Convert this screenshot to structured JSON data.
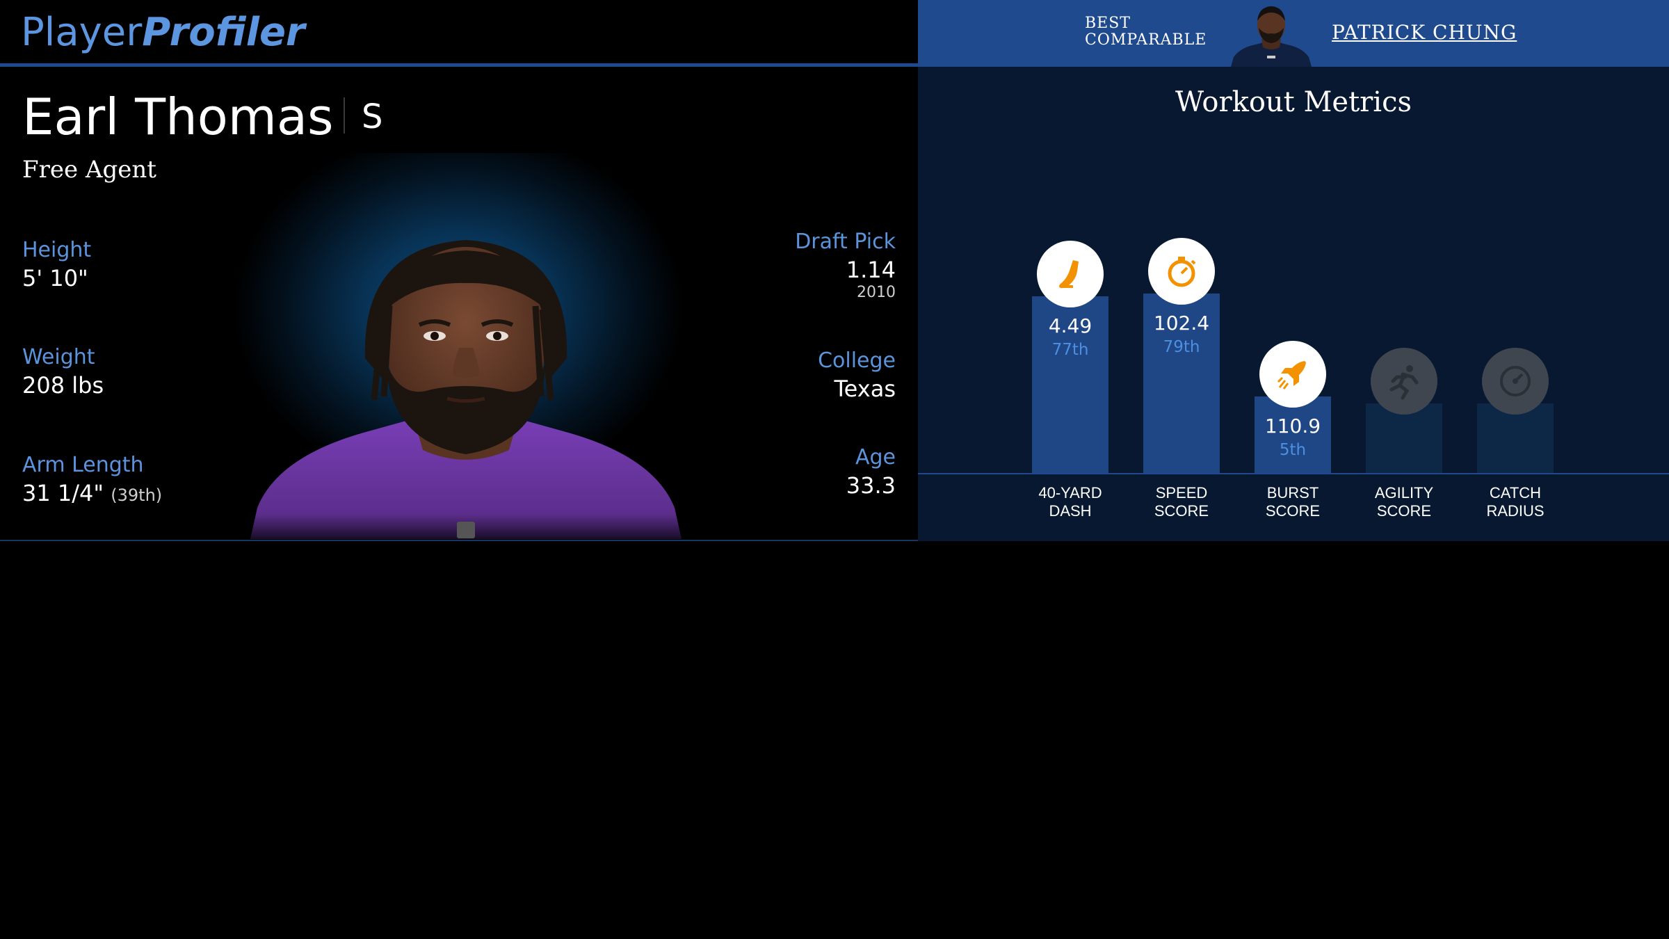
{
  "brand": {
    "logo_part1": "Player",
    "logo_part2": "Profiler"
  },
  "player": {
    "name": "Earl Thomas",
    "position": "S",
    "status": "Free Agent",
    "jersey_color": "#6b34a8"
  },
  "stats_left": {
    "height": {
      "label": "Height",
      "value": "5' 10\""
    },
    "weight": {
      "label": "Weight",
      "value": "208 lbs"
    },
    "arm_length": {
      "label": "Arm Length",
      "value": "31 1/4\"",
      "rank": "(39th)"
    }
  },
  "stats_right": {
    "draft_pick": {
      "label": "Draft Pick",
      "value": "1.14",
      "year": "2010"
    },
    "college": {
      "label": "College",
      "value": "Texas"
    },
    "age": {
      "label": "Age",
      "value": "33.3"
    }
  },
  "comparable": {
    "label_line1": "BEST",
    "label_line2": "COMPARABLE",
    "name": "PATRICK CHUNG"
  },
  "workout": {
    "title": "Workout Metrics",
    "accent_color": "#f39200",
    "metrics": [
      {
        "key": "forty",
        "label_line1": "40-YARD",
        "label_line2": "DASH",
        "value": "4.49",
        "percentile": "77th",
        "percentile_num": 77,
        "icon": "running-shoe-icon",
        "active": true
      },
      {
        "key": "speed",
        "label_line1": "SPEED",
        "label_line2": "SCORE",
        "value": "102.4",
        "percentile": "79th",
        "percentile_num": 79,
        "icon": "stopwatch-icon",
        "active": true
      },
      {
        "key": "burst",
        "label_line1": "BURST",
        "label_line2": "SCORE",
        "value": "110.9",
        "percentile": "5th",
        "percentile_num": 5,
        "icon": "rocket-icon",
        "active": true
      },
      {
        "key": "agility",
        "label_line1": "AGILITY",
        "label_line2": "SCORE",
        "value": "",
        "percentile": "",
        "percentile_num": null,
        "icon": "sprinter-icon",
        "active": false
      },
      {
        "key": "catch",
        "label_line1": "CATCH",
        "label_line2": "RADIUS",
        "value": "",
        "percentile": "",
        "percentile_num": null,
        "icon": "gauge-icon",
        "active": false
      }
    ]
  }
}
